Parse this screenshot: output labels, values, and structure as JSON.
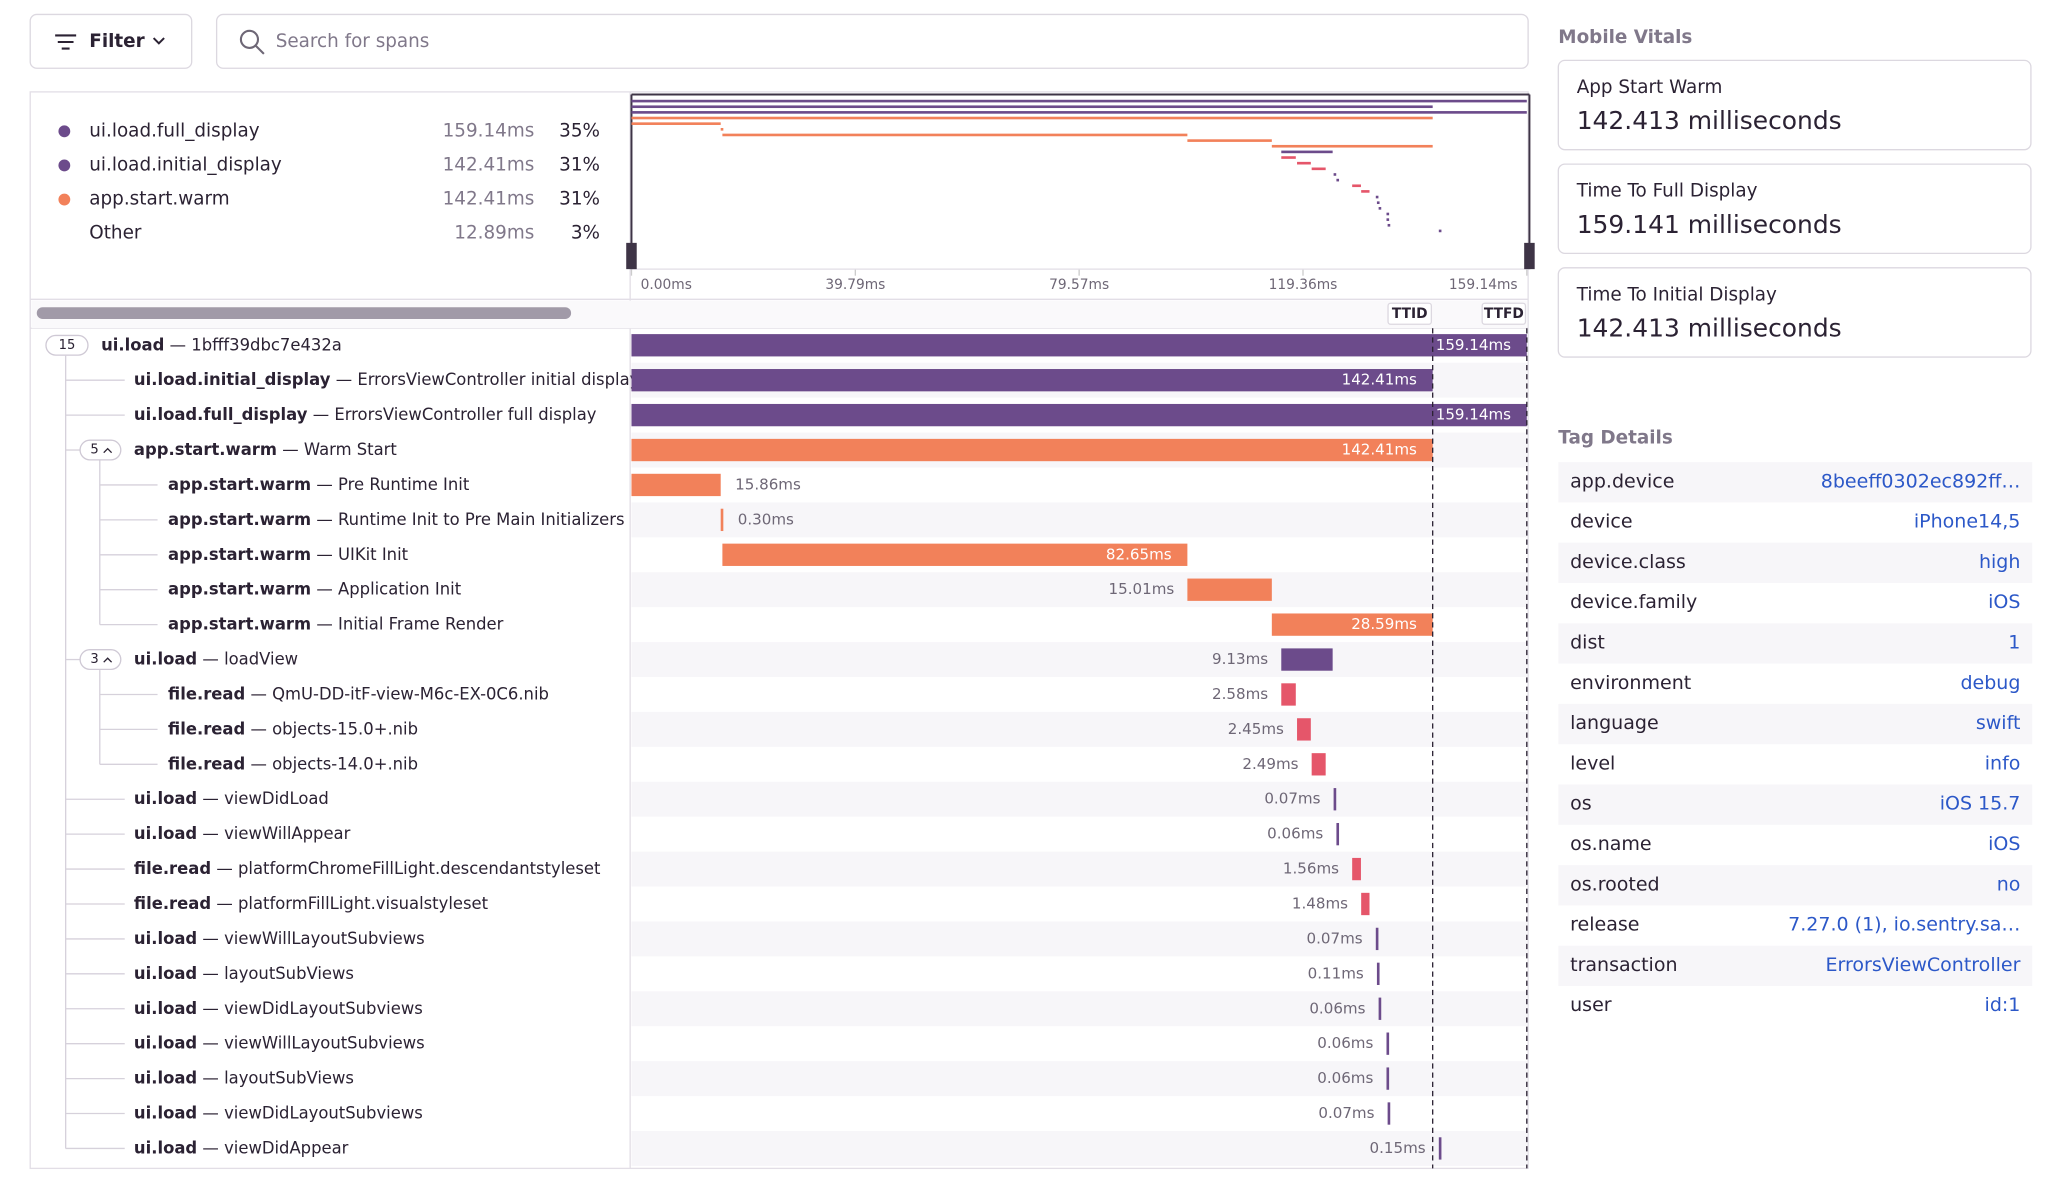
{
  "toolbar": {
    "filter": "Filter",
    "search_placeholder": "Search for spans"
  },
  "ops_breakdown": [
    {
      "name": "ui.load.full_display",
      "duration": "159.14ms",
      "percent": "35%",
      "color": "#6c4b8b"
    },
    {
      "name": "ui.load.initial_display",
      "duration": "142.41ms",
      "percent": "31%",
      "color": "#6c4b8b"
    },
    {
      "name": "app.start.warm",
      "duration": "142.41ms",
      "percent": "31%",
      "color": "#f2815a"
    },
    {
      "name": "Other",
      "duration": "12.89ms",
      "percent": "3%"
    }
  ],
  "timeline": {
    "xlim": [
      0,
      159.14
    ],
    "ticks": [
      {
        "value": 0,
        "label": "0.00ms"
      },
      {
        "value": 39.79,
        "label": "39.79ms"
      },
      {
        "value": 79.57,
        "label": "79.57ms"
      },
      {
        "value": 119.36,
        "label": "119.36ms"
      },
      {
        "value": 159.14,
        "label": "159.14ms"
      }
    ],
    "markers": [
      {
        "label": "TTID",
        "value": 142.41
      },
      {
        "label": "TTFD",
        "value": 159.14
      }
    ]
  },
  "separator": "—",
  "spans": [
    {
      "op": "ui.load",
      "description": "1bfff39dbc7e432a",
      "depth": 0,
      "children": 15,
      "start": 0,
      "value": 159.14,
      "value_label": "159.14ms",
      "color": "#6c4b8b"
    },
    {
      "op": "ui.load.initial_display",
      "description": "ErrorsViewController initial display",
      "depth": 1,
      "start": 0,
      "value": 142.41,
      "value_label": "142.41ms",
      "color": "#6c4b8b"
    },
    {
      "op": "ui.load.full_display",
      "description": "ErrorsViewController full display",
      "depth": 1,
      "start": 0,
      "value": 159.14,
      "value_label": "159.14ms",
      "color": "#6c4b8b"
    },
    {
      "op": "app.start.warm",
      "description": "Warm Start",
      "depth": 1,
      "children": 5,
      "start": 0,
      "value": 142.41,
      "value_label": "142.41ms",
      "color": "#f2815a"
    },
    {
      "op": "app.start.warm",
      "description": "Pre Runtime Init",
      "depth": 2,
      "start": 0,
      "value": 15.86,
      "value_label": "15.86ms",
      "color": "#f2815a"
    },
    {
      "op": "app.start.warm",
      "description": "Runtime Init to Pre Main Initializers",
      "depth": 2,
      "start": 15.86,
      "value": 0.3,
      "value_label": "0.30ms",
      "color": "#f2815a"
    },
    {
      "op": "app.start.warm",
      "description": "UIKit Init",
      "depth": 2,
      "start": 16.16,
      "value": 82.65,
      "value_label": "82.65ms",
      "color": "#f2815a"
    },
    {
      "op": "app.start.warm",
      "description": "Application Init",
      "depth": 2,
      "start": 98.81,
      "value": 15.01,
      "value_label": "15.01ms",
      "color": "#f2815a"
    },
    {
      "op": "app.start.warm",
      "description": "Initial Frame Render",
      "depth": 2,
      "start": 113.82,
      "value": 28.59,
      "value_label": "28.59ms",
      "color": "#f2815a"
    },
    {
      "op": "ui.load",
      "description": "loadView",
      "depth": 1,
      "children": 3,
      "start": 115.5,
      "value": 9.13,
      "value_label": "9.13ms",
      "color": "#6c4b8b"
    },
    {
      "op": "file.read",
      "description": "QmU-DD-itF-view-M6c-EX-0C6.nib",
      "depth": 2,
      "start": 115.5,
      "value": 2.58,
      "value_label": "2.58ms",
      "color": "#e5566a"
    },
    {
      "op": "file.read",
      "description": "objects-15.0+.nib",
      "depth": 2,
      "start": 118.3,
      "value": 2.45,
      "value_label": "2.45ms",
      "color": "#e5566a"
    },
    {
      "op": "file.read",
      "description": "objects-14.0+.nib",
      "depth": 2,
      "start": 120.9,
      "value": 2.49,
      "value_label": "2.49ms",
      "color": "#e5566a"
    },
    {
      "op": "ui.load",
      "description": "viewDidLoad",
      "depth": 1,
      "start": 124.8,
      "value": 0.07,
      "value_label": "0.07ms",
      "color": "#6c4b8b"
    },
    {
      "op": "ui.load",
      "description": "viewWillAppear",
      "depth": 1,
      "start": 125.3,
      "value": 0.06,
      "value_label": "0.06ms",
      "color": "#6c4b8b"
    },
    {
      "op": "file.read",
      "description": "platformChromeFillLight.descendantstyleset",
      "depth": 1,
      "start": 128.1,
      "value": 1.56,
      "value_label": "1.56ms",
      "color": "#e5566a"
    },
    {
      "op": "file.read",
      "description": "platformFillLight.visualstyleset",
      "depth": 1,
      "start": 129.7,
      "value": 1.48,
      "value_label": "1.48ms",
      "color": "#e5566a"
    },
    {
      "op": "ui.load",
      "description": "viewWillLayoutSubviews",
      "depth": 1,
      "start": 132.3,
      "value": 0.07,
      "value_label": "0.07ms",
      "color": "#6c4b8b"
    },
    {
      "op": "ui.load",
      "description": "layoutSubViews",
      "depth": 1,
      "start": 132.5,
      "value": 0.11,
      "value_label": "0.11ms",
      "color": "#6c4b8b"
    },
    {
      "op": "ui.load",
      "description": "viewDidLayoutSubviews",
      "depth": 1,
      "start": 132.8,
      "value": 0.06,
      "value_label": "0.06ms",
      "color": "#6c4b8b"
    },
    {
      "op": "ui.load",
      "description": "viewWillLayoutSubviews",
      "depth": 1,
      "start": 134.2,
      "value": 0.06,
      "value_label": "0.06ms",
      "color": "#6c4b8b"
    },
    {
      "op": "ui.load",
      "description": "layoutSubViews",
      "depth": 1,
      "start": 134.2,
      "value": 0.06,
      "value_label": "0.06ms",
      "color": "#6c4b8b"
    },
    {
      "op": "ui.load",
      "description": "viewDidLayoutSubviews",
      "depth": 1,
      "start": 134.4,
      "value": 0.07,
      "value_label": "0.07ms",
      "color": "#6c4b8b"
    },
    {
      "op": "ui.load",
      "description": "viewDidAppear",
      "depth": 1,
      "start": 143.5,
      "value": 0.15,
      "value_label": "0.15ms",
      "color": "#6c4b8b"
    }
  ],
  "mobile_vitals": {
    "title": "Mobile Vitals",
    "items": [
      {
        "label": "App Start Warm",
        "value": "142.413 milliseconds"
      },
      {
        "label": "Time To Full Display",
        "value": "159.141 milliseconds"
      },
      {
        "label": "Time To Initial Display",
        "value": "142.413 milliseconds"
      }
    ]
  },
  "tag_details": {
    "title": "Tag Details",
    "rows": [
      {
        "key": "app.device",
        "value": "8beeff0302ec892ff…"
      },
      {
        "key": "device",
        "value": "iPhone14,5"
      },
      {
        "key": "device.class",
        "value": "high"
      },
      {
        "key": "device.family",
        "value": "iOS"
      },
      {
        "key": "dist",
        "value": "1"
      },
      {
        "key": "environment",
        "value": "debug"
      },
      {
        "key": "language",
        "value": "swift"
      },
      {
        "key": "level",
        "value": "info"
      },
      {
        "key": "os",
        "value": "iOS 15.7"
      },
      {
        "key": "os.name",
        "value": "iOS"
      },
      {
        "key": "os.rooted",
        "value": "no"
      },
      {
        "key": "release",
        "value": "7.27.0 (1), io.sentry.sa…"
      },
      {
        "key": "transaction",
        "value": "ErrorsViewController"
      },
      {
        "key": "user",
        "value": "id:1"
      }
    ]
  }
}
